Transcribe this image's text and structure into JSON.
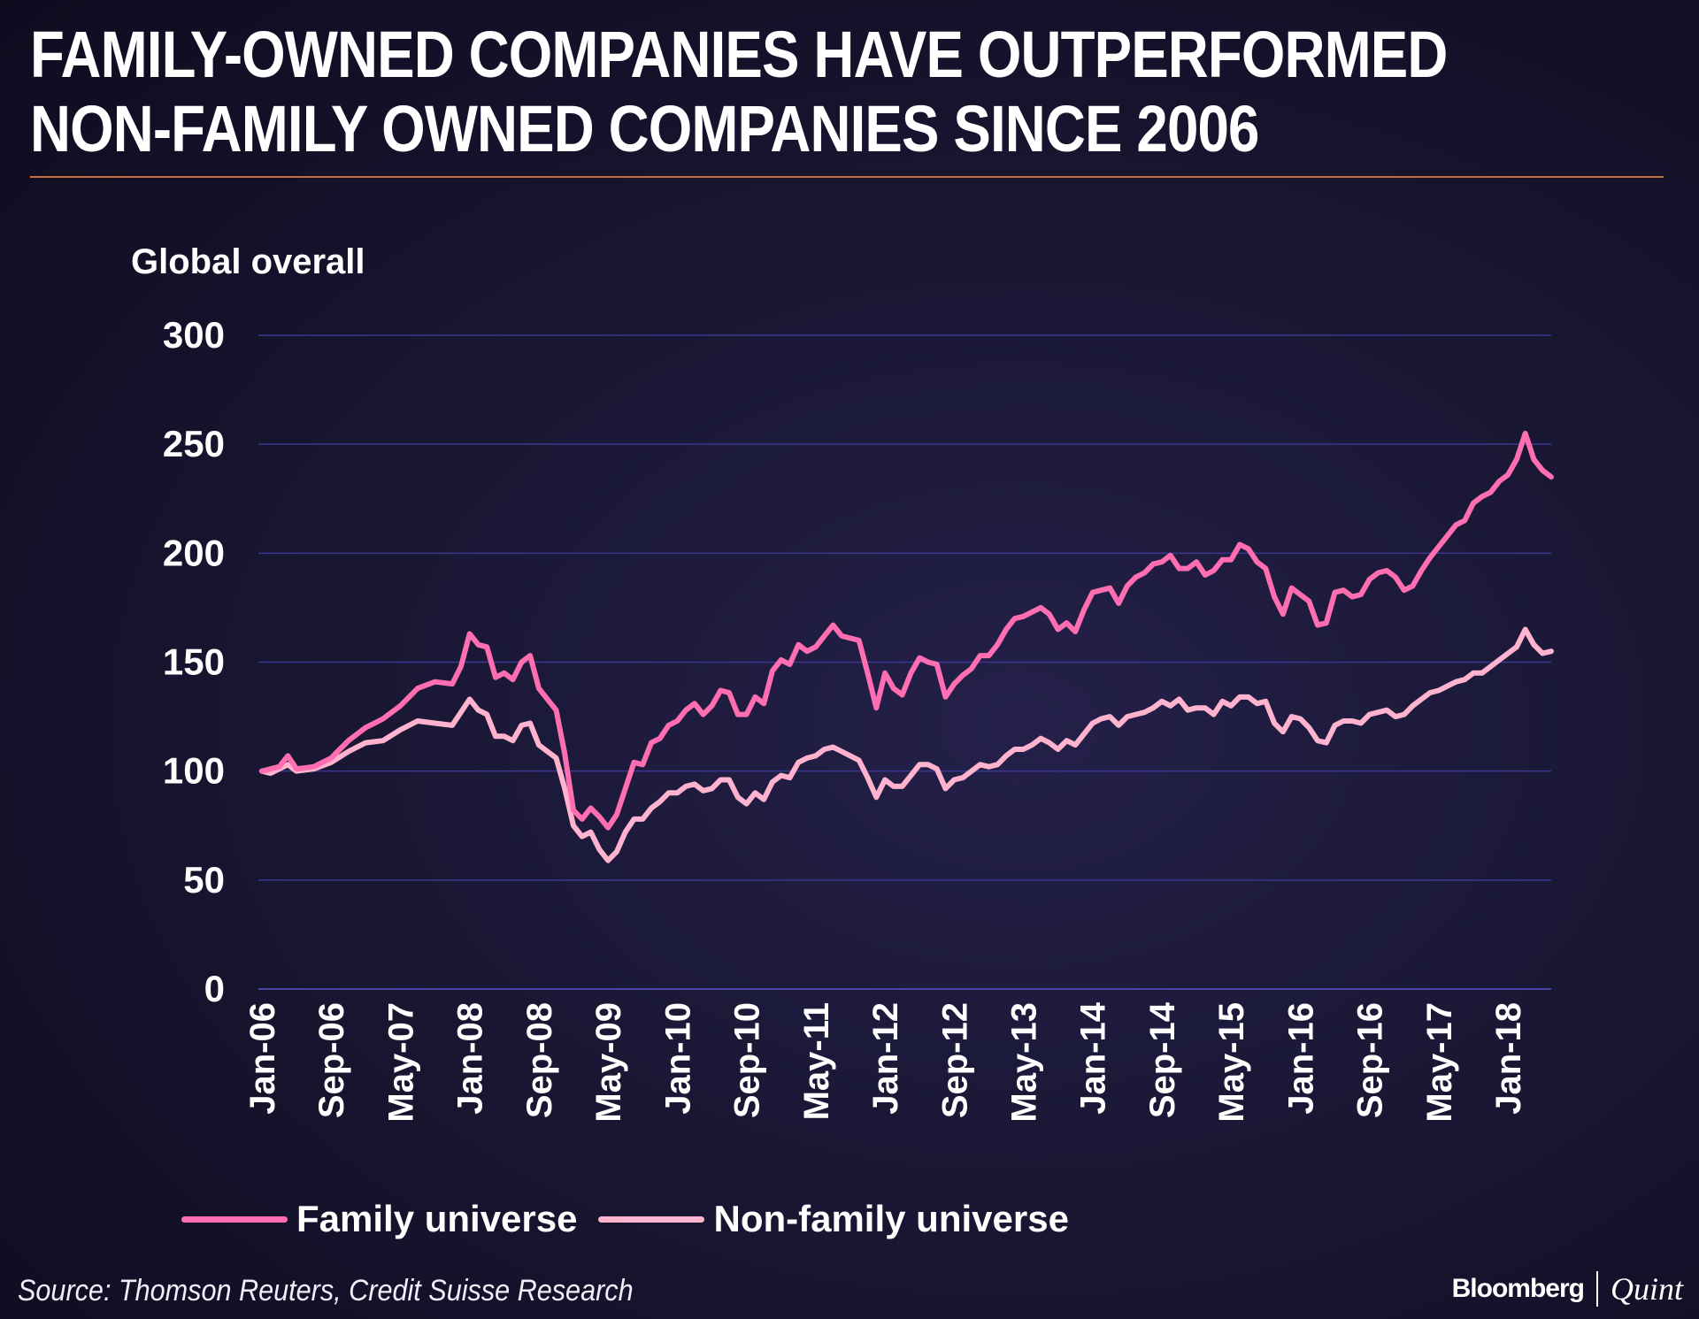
{
  "header": {
    "title_line1": "FAMILY-OWNED COMPANIES HAVE OUTPERFORMED",
    "title_line2": "NON-FAMILY OWNED COMPANIES SINCE 2006"
  },
  "footer": {
    "source": "Source: Thomson Reuters, Credit Suisse Research",
    "brand_name": "Bloomberg",
    "brand_suffix": "Quint"
  },
  "chart_data": {
    "type": "line",
    "title": "FAMILY-OWNED COMPANIES HAVE OUTPERFORMED NON-FAMILY OWNED COMPANIES SINCE 2006",
    "ylabel": "Global overall",
    "xlabel": "",
    "ylim": [
      0,
      300
    ],
    "yticks": [
      0,
      50,
      100,
      150,
      200,
      250,
      300
    ],
    "grid": true,
    "legend_position": "bottom-left",
    "x_tick_labels": [
      "Jan-06",
      "Sep-06",
      "May-07",
      "Jan-08",
      "Sep-08",
      "May-09",
      "Jan-10",
      "Sep-10",
      "May-11",
      "Jan-12",
      "Sep-12",
      "May-13",
      "Jan-14",
      "Sep-14",
      "May-15",
      "Jan-16",
      "Sep-16",
      "May-17",
      "Jan-18"
    ],
    "x_tick_month_index": [
      0,
      8,
      16,
      24,
      32,
      40,
      48,
      56,
      64,
      72,
      80,
      88,
      96,
      104,
      112,
      120,
      128,
      136,
      144
    ],
    "x_range_month_index": [
      0,
      149
    ],
    "series": [
      {
        "name": "Family universe",
        "color": "#ff6eb0",
        "points": [
          [
            0,
            100
          ],
          [
            2,
            102
          ],
          [
            3,
            107
          ],
          [
            4,
            101
          ],
          [
            6,
            102
          ],
          [
            8,
            106
          ],
          [
            10,
            114
          ],
          [
            12,
            120
          ],
          [
            14,
            124
          ],
          [
            16,
            130
          ],
          [
            18,
            138
          ],
          [
            20,
            141
          ],
          [
            22,
            140
          ],
          [
            23,
            148
          ],
          [
            24,
            163
          ],
          [
            25,
            158
          ],
          [
            26,
            157
          ],
          [
            27,
            143
          ],
          [
            28,
            145
          ],
          [
            29,
            142
          ],
          [
            30,
            150
          ],
          [
            31,
            153
          ],
          [
            32,
            138
          ],
          [
            34,
            128
          ],
          [
            35,
            108
          ],
          [
            36,
            82
          ],
          [
            37,
            78
          ],
          [
            38,
            83
          ],
          [
            39,
            79
          ],
          [
            40,
            74
          ],
          [
            41,
            80
          ],
          [
            42,
            92
          ],
          [
            43,
            104
          ],
          [
            44,
            103
          ],
          [
            45,
            113
          ],
          [
            46,
            115
          ],
          [
            47,
            121
          ],
          [
            48,
            123
          ],
          [
            49,
            128
          ],
          [
            50,
            131
          ],
          [
            51,
            126
          ],
          [
            52,
            130
          ],
          [
            53,
            137
          ],
          [
            54,
            136
          ],
          [
            55,
            126
          ],
          [
            56,
            126
          ],
          [
            57,
            134
          ],
          [
            58,
            131
          ],
          [
            59,
            146
          ],
          [
            60,
            151
          ],
          [
            61,
            149
          ],
          [
            62,
            158
          ],
          [
            63,
            155
          ],
          [
            64,
            157
          ],
          [
            65,
            162
          ],
          [
            66,
            167
          ],
          [
            67,
            162
          ],
          [
            68,
            161
          ],
          [
            69,
            160
          ],
          [
            70,
            145
          ],
          [
            71,
            129
          ],
          [
            72,
            145
          ],
          [
            73,
            138
          ],
          [
            74,
            135
          ],
          [
            75,
            145
          ],
          [
            76,
            152
          ],
          [
            77,
            150
          ],
          [
            78,
            149
          ],
          [
            79,
            134
          ],
          [
            80,
            140
          ],
          [
            81,
            144
          ],
          [
            82,
            147
          ],
          [
            83,
            153
          ],
          [
            84,
            153
          ],
          [
            85,
            158
          ],
          [
            86,
            165
          ],
          [
            87,
            170
          ],
          [
            88,
            171
          ],
          [
            89,
            173
          ],
          [
            90,
            175
          ],
          [
            91,
            172
          ],
          [
            92,
            165
          ],
          [
            93,
            168
          ],
          [
            94,
            164
          ],
          [
            95,
            174
          ],
          [
            96,
            182
          ],
          [
            97,
            183
          ],
          [
            98,
            184
          ],
          [
            99,
            177
          ],
          [
            100,
            185
          ],
          [
            101,
            189
          ],
          [
            102,
            191
          ],
          [
            103,
            195
          ],
          [
            104,
            196
          ],
          [
            105,
            199
          ],
          [
            106,
            193
          ],
          [
            107,
            193
          ],
          [
            108,
            196
          ],
          [
            109,
            190
          ],
          [
            110,
            192
          ],
          [
            111,
            197
          ],
          [
            112,
            197
          ],
          [
            113,
            204
          ],
          [
            114,
            202
          ],
          [
            115,
            196
          ],
          [
            116,
            193
          ],
          [
            117,
            180
          ],
          [
            118,
            172
          ],
          [
            119,
            184
          ],
          [
            120,
            181
          ],
          [
            121,
            178
          ],
          [
            122,
            167
          ],
          [
            123,
            168
          ],
          [
            124,
            182
          ],
          [
            125,
            183
          ],
          [
            126,
            180
          ],
          [
            127,
            181
          ],
          [
            128,
            188
          ],
          [
            129,
            191
          ],
          [
            130,
            192
          ],
          [
            131,
            189
          ],
          [
            132,
            183
          ],
          [
            133,
            185
          ],
          [
            134,
            192
          ],
          [
            135,
            198
          ],
          [
            136,
            203
          ],
          [
            137,
            208
          ],
          [
            138,
            213
          ],
          [
            139,
            215
          ],
          [
            140,
            223
          ],
          [
            141,
            226
          ],
          [
            142,
            228
          ],
          [
            143,
            233
          ],
          [
            144,
            236
          ],
          [
            145,
            243
          ],
          [
            146,
            255
          ],
          [
            147,
            243
          ],
          [
            148,
            238
          ],
          [
            149,
            235
          ]
        ]
      },
      {
        "name": "Non-family universe",
        "color": "#ffb3cf",
        "points": [
          [
            0,
            100
          ],
          [
            1,
            99
          ],
          [
            2,
            101
          ],
          [
            3,
            103
          ],
          [
            4,
            100
          ],
          [
            6,
            101
          ],
          [
            8,
            104
          ],
          [
            10,
            109
          ],
          [
            12,
            113
          ],
          [
            14,
            114
          ],
          [
            16,
            119
          ],
          [
            18,
            123
          ],
          [
            20,
            122
          ],
          [
            22,
            121
          ],
          [
            24,
            133
          ],
          [
            25,
            128
          ],
          [
            26,
            126
          ],
          [
            27,
            116
          ],
          [
            28,
            116
          ],
          [
            29,
            114
          ],
          [
            30,
            121
          ],
          [
            31,
            122
          ],
          [
            32,
            112
          ],
          [
            34,
            106
          ],
          [
            35,
            92
          ],
          [
            36,
            75
          ],
          [
            37,
            70
          ],
          [
            38,
            72
          ],
          [
            39,
            64
          ],
          [
            40,
            59
          ],
          [
            41,
            63
          ],
          [
            42,
            72
          ],
          [
            43,
            78
          ],
          [
            44,
            78
          ],
          [
            45,
            83
          ],
          [
            46,
            86
          ],
          [
            47,
            90
          ],
          [
            48,
            90
          ],
          [
            49,
            93
          ],
          [
            50,
            94
          ],
          [
            51,
            91
          ],
          [
            52,
            92
          ],
          [
            53,
            96
          ],
          [
            54,
            96
          ],
          [
            55,
            88
          ],
          [
            56,
            85
          ],
          [
            57,
            90
          ],
          [
            58,
            87
          ],
          [
            59,
            95
          ],
          [
            60,
            98
          ],
          [
            61,
            97
          ],
          [
            62,
            104
          ],
          [
            63,
            106
          ],
          [
            64,
            107
          ],
          [
            65,
            110
          ],
          [
            66,
            111
          ],
          [
            67,
            109
          ],
          [
            68,
            107
          ],
          [
            69,
            105
          ],
          [
            70,
            97
          ],
          [
            71,
            88
          ],
          [
            72,
            96
          ],
          [
            73,
            93
          ],
          [
            74,
            93
          ],
          [
            75,
            98
          ],
          [
            76,
            103
          ],
          [
            77,
            103
          ],
          [
            78,
            101
          ],
          [
            79,
            92
          ],
          [
            80,
            96
          ],
          [
            81,
            97
          ],
          [
            82,
            100
          ],
          [
            83,
            103
          ],
          [
            84,
            102
          ],
          [
            85,
            103
          ],
          [
            86,
            107
          ],
          [
            87,
            110
          ],
          [
            88,
            110
          ],
          [
            89,
            112
          ],
          [
            90,
            115
          ],
          [
            91,
            113
          ],
          [
            92,
            110
          ],
          [
            93,
            114
          ],
          [
            94,
            112
          ],
          [
            95,
            117
          ],
          [
            96,
            122
          ],
          [
            97,
            124
          ],
          [
            98,
            125
          ],
          [
            99,
            121
          ],
          [
            100,
            125
          ],
          [
            101,
            126
          ],
          [
            102,
            127
          ],
          [
            103,
            129
          ],
          [
            104,
            132
          ],
          [
            105,
            130
          ],
          [
            106,
            133
          ],
          [
            107,
            128
          ],
          [
            108,
            129
          ],
          [
            109,
            129
          ],
          [
            110,
            126
          ],
          [
            111,
            132
          ],
          [
            112,
            130
          ],
          [
            113,
            134
          ],
          [
            114,
            134
          ],
          [
            115,
            131
          ],
          [
            116,
            132
          ],
          [
            117,
            122
          ],
          [
            118,
            118
          ],
          [
            119,
            125
          ],
          [
            120,
            124
          ],
          [
            121,
            120
          ],
          [
            122,
            114
          ],
          [
            123,
            113
          ],
          [
            124,
            121
          ],
          [
            125,
            123
          ],
          [
            126,
            123
          ],
          [
            127,
            122
          ],
          [
            128,
            126
          ],
          [
            129,
            127
          ],
          [
            130,
            128
          ],
          [
            131,
            125
          ],
          [
            132,
            126
          ],
          [
            133,
            130
          ],
          [
            134,
            133
          ],
          [
            135,
            136
          ],
          [
            136,
            137
          ],
          [
            137,
            139
          ],
          [
            138,
            141
          ],
          [
            139,
            142
          ],
          [
            140,
            145
          ],
          [
            141,
            145
          ],
          [
            142,
            148
          ],
          [
            143,
            151
          ],
          [
            144,
            154
          ],
          [
            145,
            157
          ],
          [
            146,
            165
          ],
          [
            147,
            158
          ],
          [
            148,
            154
          ],
          [
            149,
            155
          ]
        ]
      }
    ]
  }
}
